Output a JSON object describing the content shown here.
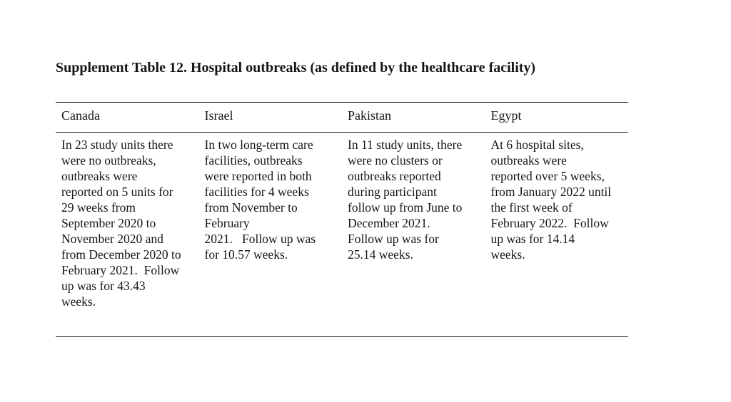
{
  "document": {
    "title": "Supplement Table 12. Hospital outbreaks (as defined by the healthcare facility)",
    "table": {
      "columns": [
        {
          "header": "Canada",
          "text": "In 23 study units there\nwere no outbreaks,\noutbreaks were\nreported on 5 units for\n29 weeks from\nSeptember 2020 to\nNovember 2020 and\nfrom December 2020 to\nFebruary 2021.  Follow\nup was for 43.43\nweeks."
        },
        {
          "header": "Israel",
          "text": "In two long-term care\nfacilities, outbreaks\nwere reported in both\nfacilities for 4 weeks\nfrom November to\nFebruary\n2021.   Follow up was\nfor 10.57 weeks."
        },
        {
          "header": "Pakistan",
          "text": "In 11 study units, there\nwere no clusters or\noutbreaks reported\nduring participant\nfollow up from June to\nDecember 2021.\nFollow up was for\n25.14 weeks."
        },
        {
          "header": "Egypt",
          "text": "At 6 hospital sites,\noutbreaks were\nreported over 5 weeks,\nfrom January 2022 until\nthe first week of\nFebruary 2022.  Follow\nup was for 14.14\nweeks."
        }
      ]
    }
  }
}
